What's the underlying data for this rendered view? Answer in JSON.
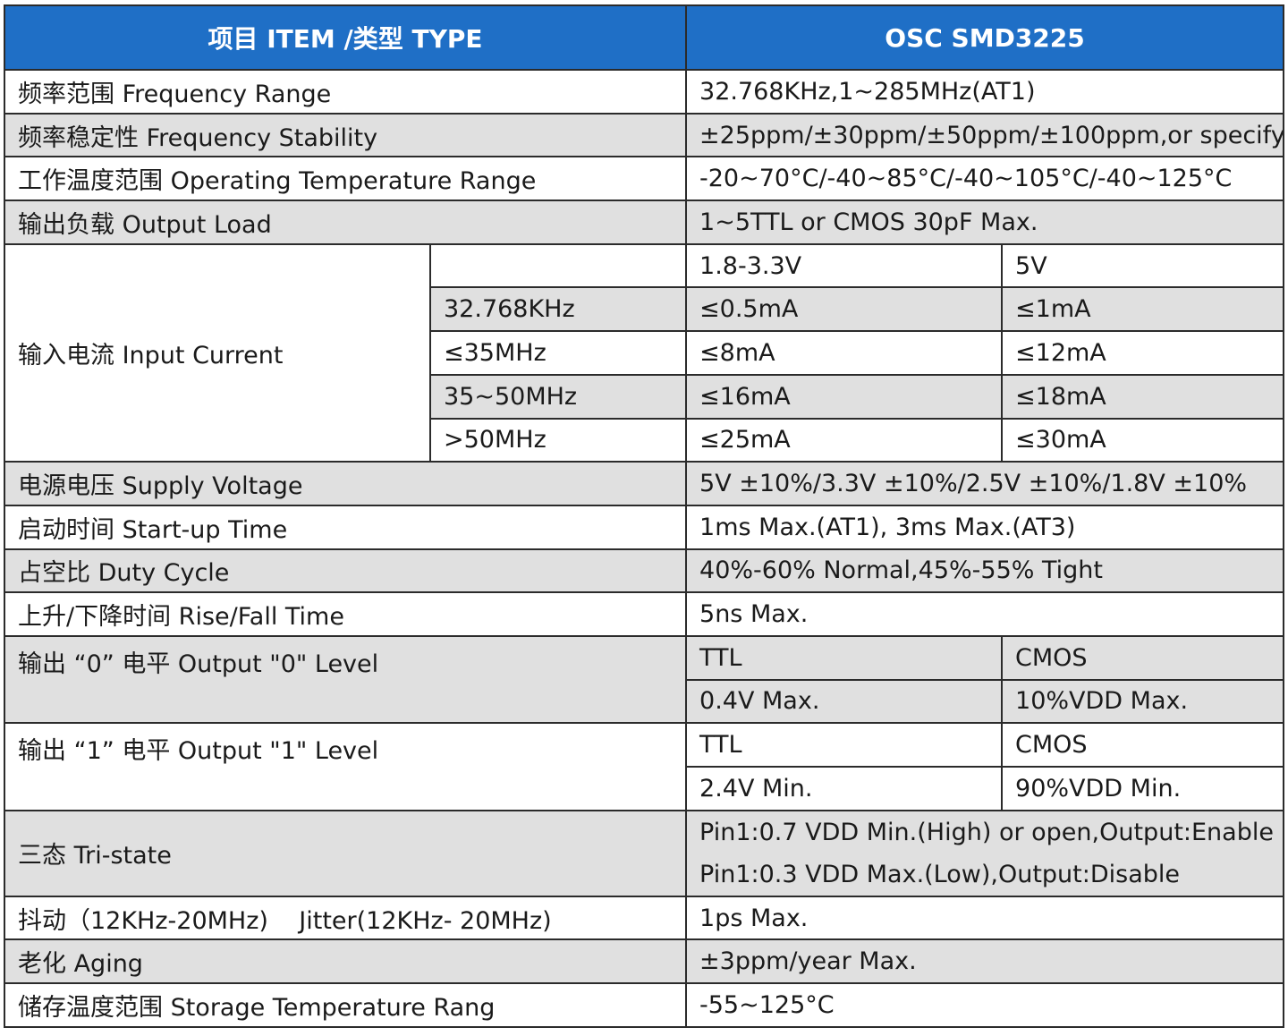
{
  "header": {
    "item_label": "项目 ITEM /类型 TYPE",
    "model_label": "OSC SMD3225"
  },
  "rows": {
    "frequency_range": {
      "label": "频率范围  Frequency Range",
      "value": "32.768KHz,1~285MHz(AT1)"
    },
    "frequency_stability": {
      "label": "频率稳定性 Frequency Stability",
      "value": "±25ppm/±30ppm/±50ppm/±100ppm,or specify"
    },
    "operating_temperature": {
      "label": "工作温度范围  Operating Temperature Range",
      "value": "-20~70°C/-40~85°C/-40~105°C/-40~125°C"
    },
    "output_load": {
      "label": "输出负载  Output Load",
      "value": "1~5TTL or CMOS 30pF Max."
    },
    "input_current": {
      "label": "输入电流  Input Current",
      "voltage_headers": [
        "1.8-3.3V",
        "5V"
      ],
      "rows": [
        {
          "freq": "32.768KHz",
          "low_v": "≤0.5mA",
          "high_v": "≤1mA"
        },
        {
          "freq": "≤35MHz",
          "low_v": "≤8mA",
          "high_v": "≤12mA"
        },
        {
          "freq": "35~50MHz",
          "low_v": "≤16mA",
          "high_v": "≤18mA"
        },
        {
          "freq": ">50MHz",
          "low_v": "≤25mA",
          "high_v": "≤30mA"
        }
      ]
    },
    "supply_voltage": {
      "label": "电源电压  Supply Voltage",
      "value": "5V  ±10%/3.3V  ±10%/2.5V  ±10%/1.8V  ±10%"
    },
    "startup_time": {
      "label": "启动时间  Start-up Time",
      "value": "1ms Max.(AT1), 3ms Max.(AT3)"
    },
    "duty_cycle": {
      "label": "占空比  Duty Cycle",
      "value": "40%-60% Normal,45%-55% Tight"
    },
    "rise_fall": {
      "label": "上升/下降时间  Rise/Fall Time",
      "value": "5ns Max."
    },
    "output_0": {
      "label": "输出 “0” 电平  Output \"0\" Level",
      "ttl_label": "TTL",
      "cmos_label": "CMOS",
      "ttl_value": "0.4V Max.",
      "cmos_value": "10%VDD Max."
    },
    "output_1": {
      "label": "输出 “1” 电平  Output \"1\" Level",
      "ttl_label": "TTL",
      "cmos_label": "CMOS",
      "ttl_value": "2.4V Min.",
      "cmos_value": "90%VDD Min."
    },
    "tri_state": {
      "label": "三态  Tri-state",
      "line1": "Pin1:0.7 VDD Min.(High) or open,Output:Enable",
      "line2": "Pin1:0.3 VDD Max.(Low),Output:Disable"
    },
    "jitter": {
      "label": "抖动（12KHz-20MHz)    Jitter(12KHz- 20MHz)",
      "value": "1ps Max."
    },
    "aging": {
      "label": "老化  Aging",
      "value": "±3ppm/year Max."
    },
    "storage_temperature": {
      "label": "储存温度范围  Storage Temperature Rang",
      "value": "-55~125°C"
    }
  },
  "colors": {
    "header_bg": "#1f6fc6",
    "header_text": "#ffffff",
    "shaded_row": "#e0e0e0",
    "border": "#2b2b2b"
  }
}
